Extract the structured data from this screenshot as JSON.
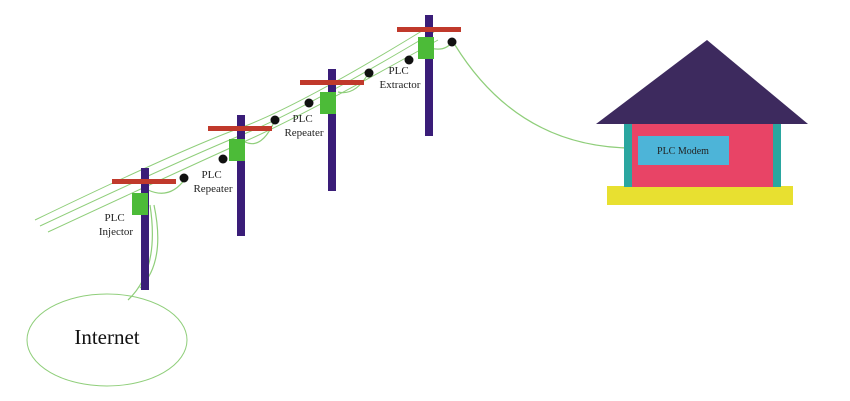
{
  "internet": {
    "label": "Internet"
  },
  "devices": [
    {
      "line1": "PLC",
      "line2": "Injector"
    },
    {
      "line1": "PLC",
      "line2": "Repeater"
    },
    {
      "line1": "PLC",
      "line2": "Repeater"
    },
    {
      "line1": "PLC",
      "line2": "Extractor"
    }
  ],
  "house": {
    "modem_label": "PLC Modem"
  },
  "colors": {
    "pole": "#3a1d78",
    "crossarm": "#c0392b",
    "device": "#4cbb38",
    "wire": "#8fce7a",
    "roof": "#3d2a5e",
    "house_wall": "#e84466",
    "house_side": "#2aa6a0",
    "foundation": "#e8e030",
    "modem": "#4db4d8"
  }
}
